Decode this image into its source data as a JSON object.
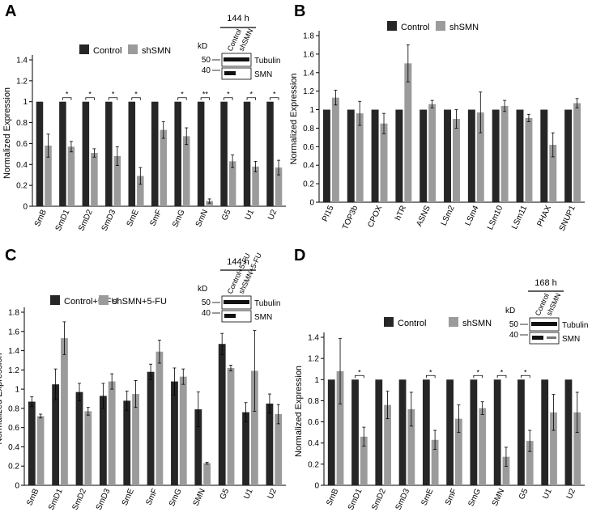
{
  "colors": {
    "control": "#262626",
    "treated": "#9b9b9b"
  },
  "chart_data": [
    {
      "panel": "A",
      "type": "bar",
      "ylabel": "Normalized Expression",
      "ylim": [
        0,
        1.4
      ],
      "yticks": [
        "0",
        "0.2",
        "0.4",
        "0.6",
        "0.8",
        "1",
        "1.2",
        "1.4"
      ],
      "grid": false,
      "legend_position": "top-left",
      "categories": [
        "SmB",
        "SmD1",
        "SmD2",
        "SmD3",
        "SmE",
        "SmF",
        "SmG",
        "SmN",
        "G5",
        "U1",
        "U2"
      ],
      "series": [
        {
          "name": "Control",
          "values": [
            1,
            1,
            1,
            1,
            1,
            1,
            1,
            1,
            1,
            1,
            1
          ],
          "errors": [
            0,
            0,
            0,
            0,
            0,
            0,
            0,
            0,
            0,
            0,
            0
          ]
        },
        {
          "name": "shSMN",
          "values": [
            0.58,
            0.57,
            0.51,
            0.48,
            0.29,
            0.73,
            0.67,
            0.05,
            0.43,
            0.38,
            0.37
          ],
          "errors": [
            0.11,
            0.05,
            0.04,
            0.09,
            0.08,
            0.08,
            0.08,
            0.02,
            0.06,
            0.05,
            0.07
          ]
        }
      ],
      "significance": [
        "",
        "*",
        "*",
        "*",
        "*",
        "",
        "*",
        "**",
        "*",
        "*",
        "*"
      ],
      "blot": {
        "timepoint": "144 h",
        "lane_labels": [
          "Control",
          "shSMN"
        ],
        "unit": "kD",
        "markers": [
          "50",
          "40"
        ],
        "bands": [
          "Tubulin",
          "SMN"
        ]
      }
    },
    {
      "panel": "B",
      "type": "bar",
      "ylabel": "Normalized Expression",
      "ylim": [
        0,
        1.8
      ],
      "yticks": [
        "0",
        "0.2",
        "0.4",
        "0.6",
        "0.8",
        "1",
        "1.2",
        "1.4",
        "1.6",
        "1.8"
      ],
      "grid": false,
      "legend_position": "top-left",
      "categories": [
        "PI15",
        "TOP3b",
        "CPOX",
        "hTR",
        "ASNS",
        "LSm2",
        "LSm4",
        "LSm10",
        "LSm11",
        "PHAX",
        "SNUP1"
      ],
      "series": [
        {
          "name": "Control",
          "values": [
            1,
            1,
            1,
            1,
            1,
            1,
            1,
            1,
            1,
            1,
            1
          ],
          "errors": [
            0,
            0,
            0,
            0,
            0,
            0,
            0,
            0,
            0,
            0,
            0
          ]
        },
        {
          "name": "shSMN",
          "values": [
            1.13,
            0.96,
            0.85,
            1.5,
            1.06,
            0.9,
            0.97,
            1.04,
            0.91,
            0.62,
            1.07
          ],
          "errors": [
            0.08,
            0.13,
            0.11,
            0.2,
            0.04,
            0.1,
            0.22,
            0.06,
            0.04,
            0.13,
            0.05
          ]
        }
      ]
    },
    {
      "panel": "C",
      "type": "bar",
      "ylabel": "Normalized Expression",
      "ylim": [
        0,
        1.8
      ],
      "yticks": [
        "0",
        "0.2",
        "0.4",
        "0.6",
        "0.8",
        "1",
        "1.2",
        "1.4",
        "1.6",
        "1.8"
      ],
      "grid": false,
      "legend_position": "top-left",
      "categories": [
        "SmB",
        "SmD1",
        "SmD2",
        "SmD3",
        "SmE",
        "SmF",
        "SmG",
        "SMN",
        "G5",
        "U1",
        "U2"
      ],
      "series": [
        {
          "name": "Control+5-FU",
          "values": [
            0.87,
            1.05,
            0.97,
            0.93,
            0.88,
            1.18,
            1.08,
            0.79,
            1.47,
            0.76,
            0.85
          ],
          "errors": [
            0.05,
            0.16,
            0.09,
            0.13,
            0.1,
            0.08,
            0.14,
            0.18,
            0.11,
            0.1,
            0.1
          ]
        },
        {
          "name": "shSMN+5-FU",
          "values": [
            0.72,
            1.53,
            0.77,
            1.08,
            0.95,
            1.39,
            1.13,
            0.23,
            1.22,
            1.19,
            0.74
          ],
          "errors": [
            0.02,
            0.17,
            0.04,
            0.08,
            0.14,
            0.12,
            0.08,
            0.01,
            0.03,
            0.42,
            0.1
          ]
        }
      ],
      "blot": {
        "timepoint": "144 h",
        "lane_labels": [
          "Control+5-FU",
          "shSMN+5-FU"
        ],
        "unit": "kD",
        "markers": [
          "50",
          "40"
        ],
        "bands": [
          "Tubulin",
          "SMN"
        ]
      }
    },
    {
      "panel": "D",
      "type": "bar",
      "ylabel": "Normalized Expression",
      "ylim": [
        0,
        1.4
      ],
      "yticks": [
        "0",
        "0.2",
        "0.4",
        "0.6",
        "0.8",
        "1",
        "1.2",
        "1.4"
      ],
      "grid": false,
      "legend_position": "top-center",
      "categories": [
        "SmB",
        "SmD1",
        "SmD2",
        "SmD3",
        "SmE",
        "SmF",
        "SmG",
        "SMN",
        "G5",
        "U1",
        "U2"
      ],
      "series": [
        {
          "name": "Control",
          "values": [
            1,
            1,
            1,
            1,
            1,
            1,
            1,
            1,
            1,
            1,
            1
          ],
          "errors": [
            0,
            0,
            0,
            0,
            0,
            0,
            0,
            0,
            0,
            0,
            0
          ]
        },
        {
          "name": "shSMN",
          "values": [
            1.08,
            0.46,
            0.76,
            0.72,
            0.43,
            0.63,
            0.73,
            0.27,
            0.42,
            0.69,
            0.69
          ],
          "errors": [
            0.31,
            0.09,
            0.13,
            0.16,
            0.09,
            0.13,
            0.06,
            0.09,
            0.1,
            0.17,
            0.19
          ]
        }
      ],
      "significance": [
        "",
        "*",
        "",
        "",
        "*",
        "",
        "*",
        "*",
        "*",
        "",
        ""
      ],
      "blot": {
        "timepoint": "168 h",
        "lane_labels": [
          "Control",
          "shSMN"
        ],
        "unit": "kD",
        "markers": [
          "50",
          "40"
        ],
        "bands": [
          "Tubulin",
          "SMN"
        ]
      }
    }
  ]
}
